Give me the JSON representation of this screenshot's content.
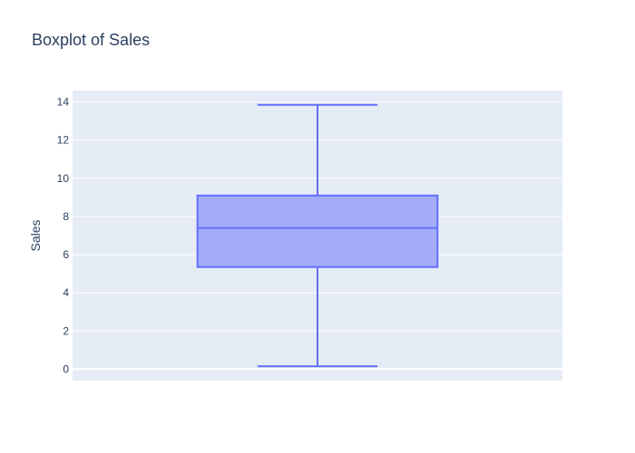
{
  "chart_data": {
    "type": "box",
    "title": "Boxplot of Sales",
    "xlabel": "",
    "ylabel": "Sales",
    "ylim": [
      -0.6,
      14.6
    ],
    "yticks": [
      0,
      2,
      4,
      6,
      8,
      10,
      12,
      14
    ],
    "grid": true,
    "legend": "none",
    "series": [
      {
        "min": 0.15,
        "q1": 5.35,
        "median": 7.4,
        "q3": 9.1,
        "max": 13.85
      }
    ],
    "colors": {
      "plot_background": "#e5ecf6",
      "grid": "#ffffff",
      "box_line": "#636efa",
      "box_fill": "#a3acf9"
    }
  }
}
